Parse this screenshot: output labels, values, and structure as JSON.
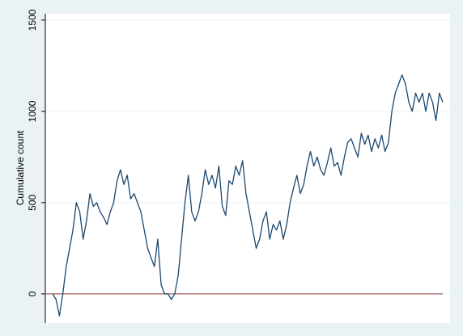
{
  "chart_data": {
    "type": "line",
    "y_label": "Cumulative count",
    "color": "#1a476f",
    "reference_line": {
      "value": 0,
      "color": "#90353b"
    },
    "ylim": [
      -160,
      1535
    ],
    "yticks": [
      0,
      500,
      1000,
      1500
    ],
    "grid": true,
    "values": [
      0,
      -30,
      -120,
      0,
      150,
      250,
      350,
      500,
      450,
      300,
      400,
      550,
      480,
      500,
      450,
      420,
      380,
      450,
      500,
      620,
      680,
      600,
      650,
      520,
      550,
      500,
      450,
      350,
      250,
      200,
      150,
      300,
      50,
      0,
      0,
      -30,
      0,
      100,
      300,
      500,
      650,
      450,
      400,
      450,
      550,
      680,
      600,
      650,
      580,
      700,
      480,
      430,
      620,
      600,
      700,
      650,
      730,
      550,
      450,
      350,
      250,
      300,
      400,
      450,
      300,
      380,
      350,
      400,
      300,
      380,
      500,
      580,
      650,
      550,
      600,
      700,
      780,
      700,
      750,
      680,
      650,
      720,
      800,
      700,
      720,
      650,
      750,
      830,
      850,
      800,
      750,
      880,
      820,
      870,
      780,
      850,
      800,
      870,
      780,
      830,
      1000,
      1100,
      1150,
      1200,
      1150,
      1050,
      1000,
      1100,
      1050,
      1100,
      1000,
      1100,
      1050,
      950,
      1100,
      1050
    ]
  }
}
